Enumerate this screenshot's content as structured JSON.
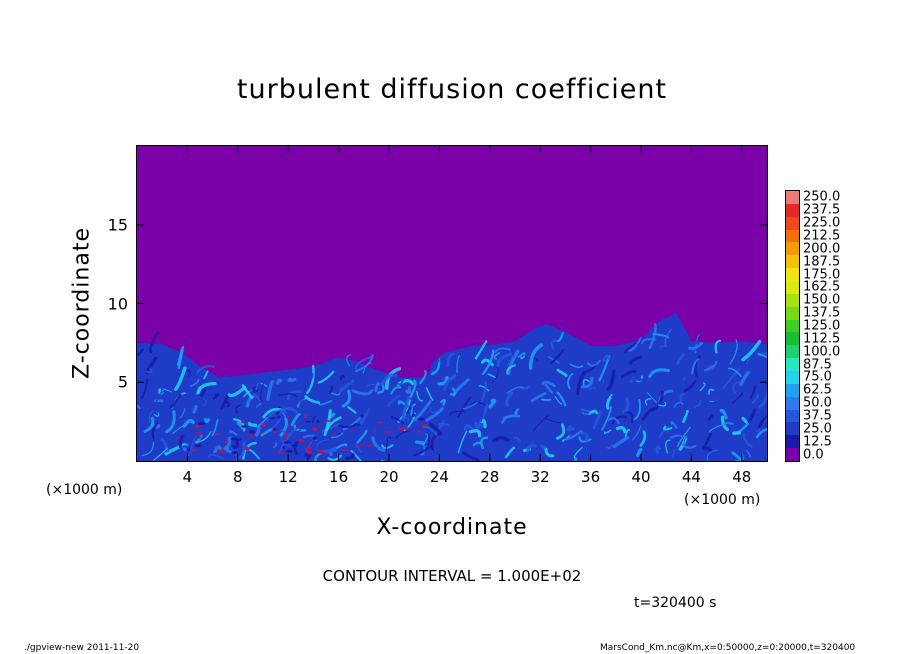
{
  "title": "turbulent diffusion coefficient",
  "chart_data": {
    "type": "heatmap",
    "title": "turbulent diffusion coefficient",
    "xlabel": "X-coordinate",
    "ylabel": "Z-coordinate",
    "x_unit": "(×1000 m)",
    "y_unit": "(×1000 m)",
    "xlim": [
      0,
      50
    ],
    "ylim": [
      0,
      20
    ],
    "x_ticks": [
      4,
      8,
      12,
      16,
      20,
      24,
      28,
      32,
      36,
      40,
      44,
      48
    ],
    "y_ticks": [
      5,
      10,
      15
    ],
    "colorbar": {
      "levels": [
        "0.0",
        "12.5",
        "25.0",
        "37.5",
        "50.0",
        "62.5",
        "75.0",
        "87.5",
        "100.0",
        "112.5",
        "125.0",
        "137.5",
        "150.0",
        "162.5",
        "175.0",
        "187.5",
        "200.0",
        "212.5",
        "225.0",
        "237.5",
        "250.0"
      ],
      "colors": [
        "#7a00a8",
        "#1a1aa6",
        "#1f3cc8",
        "#2458e0",
        "#2a7af0",
        "#1fa2f2",
        "#22d2ee",
        "#24e8c0",
        "#1fd070",
        "#18c030",
        "#3ad020",
        "#7ad81a",
        "#a8e014",
        "#d8ec10",
        "#f2e410",
        "#f4c00c",
        "#f49a0a",
        "#f2700a",
        "#f04818",
        "#e82828",
        "#f07878"
      ]
    },
    "boundary_layer_top": [
      [
        0,
        7.5
      ],
      [
        2,
        7.4
      ],
      [
        3.5,
        6.9
      ],
      [
        5,
        6.0
      ],
      [
        6.5,
        5.3
      ],
      [
        8,
        5.4
      ],
      [
        10,
        5.6
      ],
      [
        12,
        5.8
      ],
      [
        14,
        6.0
      ],
      [
        16,
        6.6
      ],
      [
        17.5,
        6.3
      ],
      [
        19,
        5.8
      ],
      [
        21,
        5.3
      ],
      [
        23,
        5.3
      ],
      [
        23.5,
        6.3
      ],
      [
        24.5,
        6.9
      ],
      [
        26.5,
        7.3
      ],
      [
        28.5,
        7.4
      ],
      [
        30,
        7.6
      ],
      [
        31.5,
        8.4
      ],
      [
        32.5,
        8.7
      ],
      [
        34,
        8.2
      ],
      [
        36,
        7.3
      ],
      [
        38,
        7.3
      ],
      [
        40,
        7.7
      ],
      [
        41.5,
        8.9
      ],
      [
        42.8,
        9.4
      ],
      [
        44,
        7.6
      ],
      [
        46,
        7.5
      ],
      [
        48,
        7.6
      ],
      [
        50,
        7.4
      ]
    ],
    "background_level": "0.0",
    "boundary_layer_level": "25.0"
  },
  "contour_interval": "CONTOUR INTERVAL = 1.000E+02",
  "time_label": "t=320400 s",
  "footer_left": "./gpview-new   2011-11-20",
  "footer_right": "MarsCond_Km.nc@Km,x=0:50000,z=0:20000,t=320400"
}
